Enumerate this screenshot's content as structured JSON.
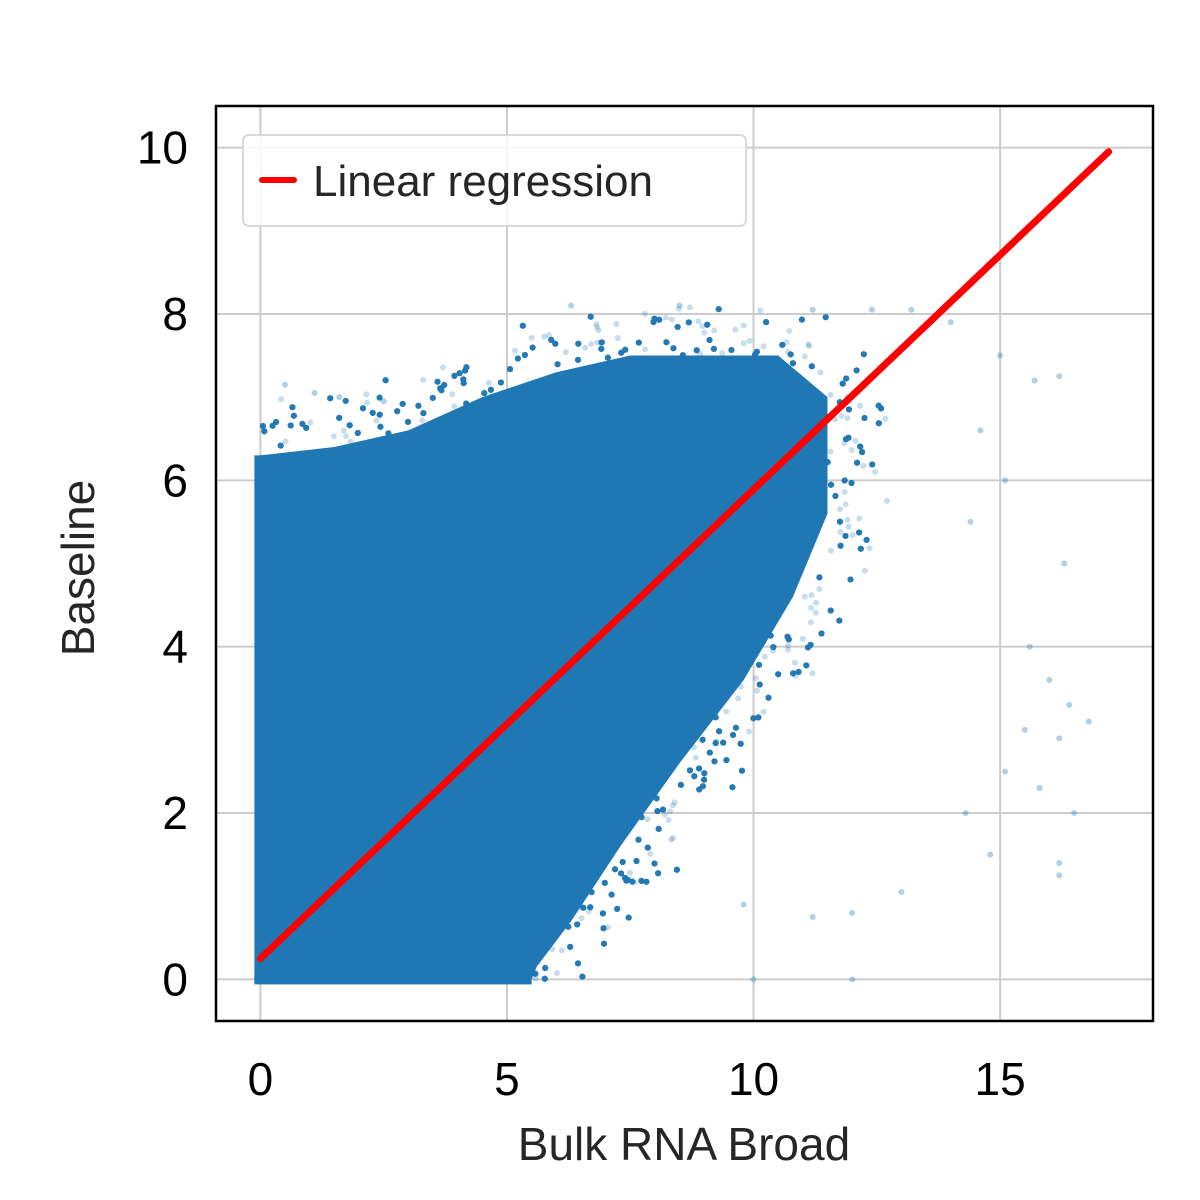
{
  "chart_data": {
    "type": "scatter",
    "xlabel": "Bulk RNA Broad",
    "ylabel": "Baseline",
    "xlim": [
      -0.9,
      18.1
    ],
    "ylim": [
      -0.5,
      10.5
    ],
    "x_ticks": [
      0,
      5,
      10,
      15
    ],
    "y_ticks": [
      0,
      2,
      4,
      6,
      8,
      10
    ],
    "grid": true,
    "legend_position": "top-left",
    "series": [
      {
        "name": "Linear regression",
        "kind": "line",
        "color": "#ff0000",
        "x": [
          0,
          17.2
        ],
        "y": [
          0.25,
          9.95
        ]
      },
      {
        "kind": "scatter",
        "color": "#1f77b4",
        "opacity": 0.25,
        "description_values": {
          "dense_core_polygon": [
            [
              0,
              0
            ],
            [
              0,
              6.3
            ],
            [
              1.5,
              6.4
            ],
            [
              3,
              6.6
            ],
            [
              4.5,
              7.0
            ],
            [
              6,
              7.3
            ],
            [
              7.5,
              7.5
            ],
            [
              9,
              7.5
            ],
            [
              10.5,
              7.5
            ],
            [
              11.5,
              7.0
            ],
            [
              11.5,
              5.6
            ],
            [
              10.8,
              4.6
            ],
            [
              9.8,
              3.6
            ],
            [
              8.5,
              2.6
            ],
            [
              7.3,
              1.6
            ],
            [
              6.3,
              0.7
            ],
            [
              5.6,
              0.15
            ],
            [
              5.5,
              0
            ]
          ],
          "outliers": [
            [
              0.5,
              7.15
            ],
            [
              1.1,
              7.05
            ],
            [
              1.6,
              7.0
            ],
            [
              2.5,
              6.95
            ],
            [
              6.3,
              8.1
            ],
            [
              8.5,
              8.1
            ],
            [
              11.2,
              8.05
            ],
            [
              12.4,
              8.05
            ],
            [
              13.2,
              8.05
            ],
            [
              14.0,
              7.9
            ],
            [
              15.0,
              7.5
            ],
            [
              15.7,
              7.2
            ],
            [
              16.2,
              7.25
            ],
            [
              14.6,
              6.6
            ],
            [
              15.1,
              6.0
            ],
            [
              14.4,
              5.5
            ],
            [
              16.3,
              5.0
            ],
            [
              15.6,
              4.0
            ],
            [
              16.0,
              3.6
            ],
            [
              16.4,
              3.3
            ],
            [
              15.5,
              3.0
            ],
            [
              16.2,
              2.9
            ],
            [
              16.8,
              3.1
            ],
            [
              15.1,
              2.5
            ],
            [
              15.8,
              2.3
            ],
            [
              16.5,
              2.0
            ],
            [
              14.3,
              2.0
            ],
            [
              14.8,
              1.5
            ],
            [
              16.2,
              1.4
            ],
            [
              16.2,
              1.25
            ],
            [
              13.0,
              1.05
            ],
            [
              12.0,
              0.8
            ],
            [
              11.2,
              0.75
            ],
            [
              9.8,
              0.9
            ],
            [
              12.0,
              0.0
            ],
            [
              10.0,
              0.0
            ]
          ],
          "zero_band_max_x": 10
        }
      }
    ]
  }
}
